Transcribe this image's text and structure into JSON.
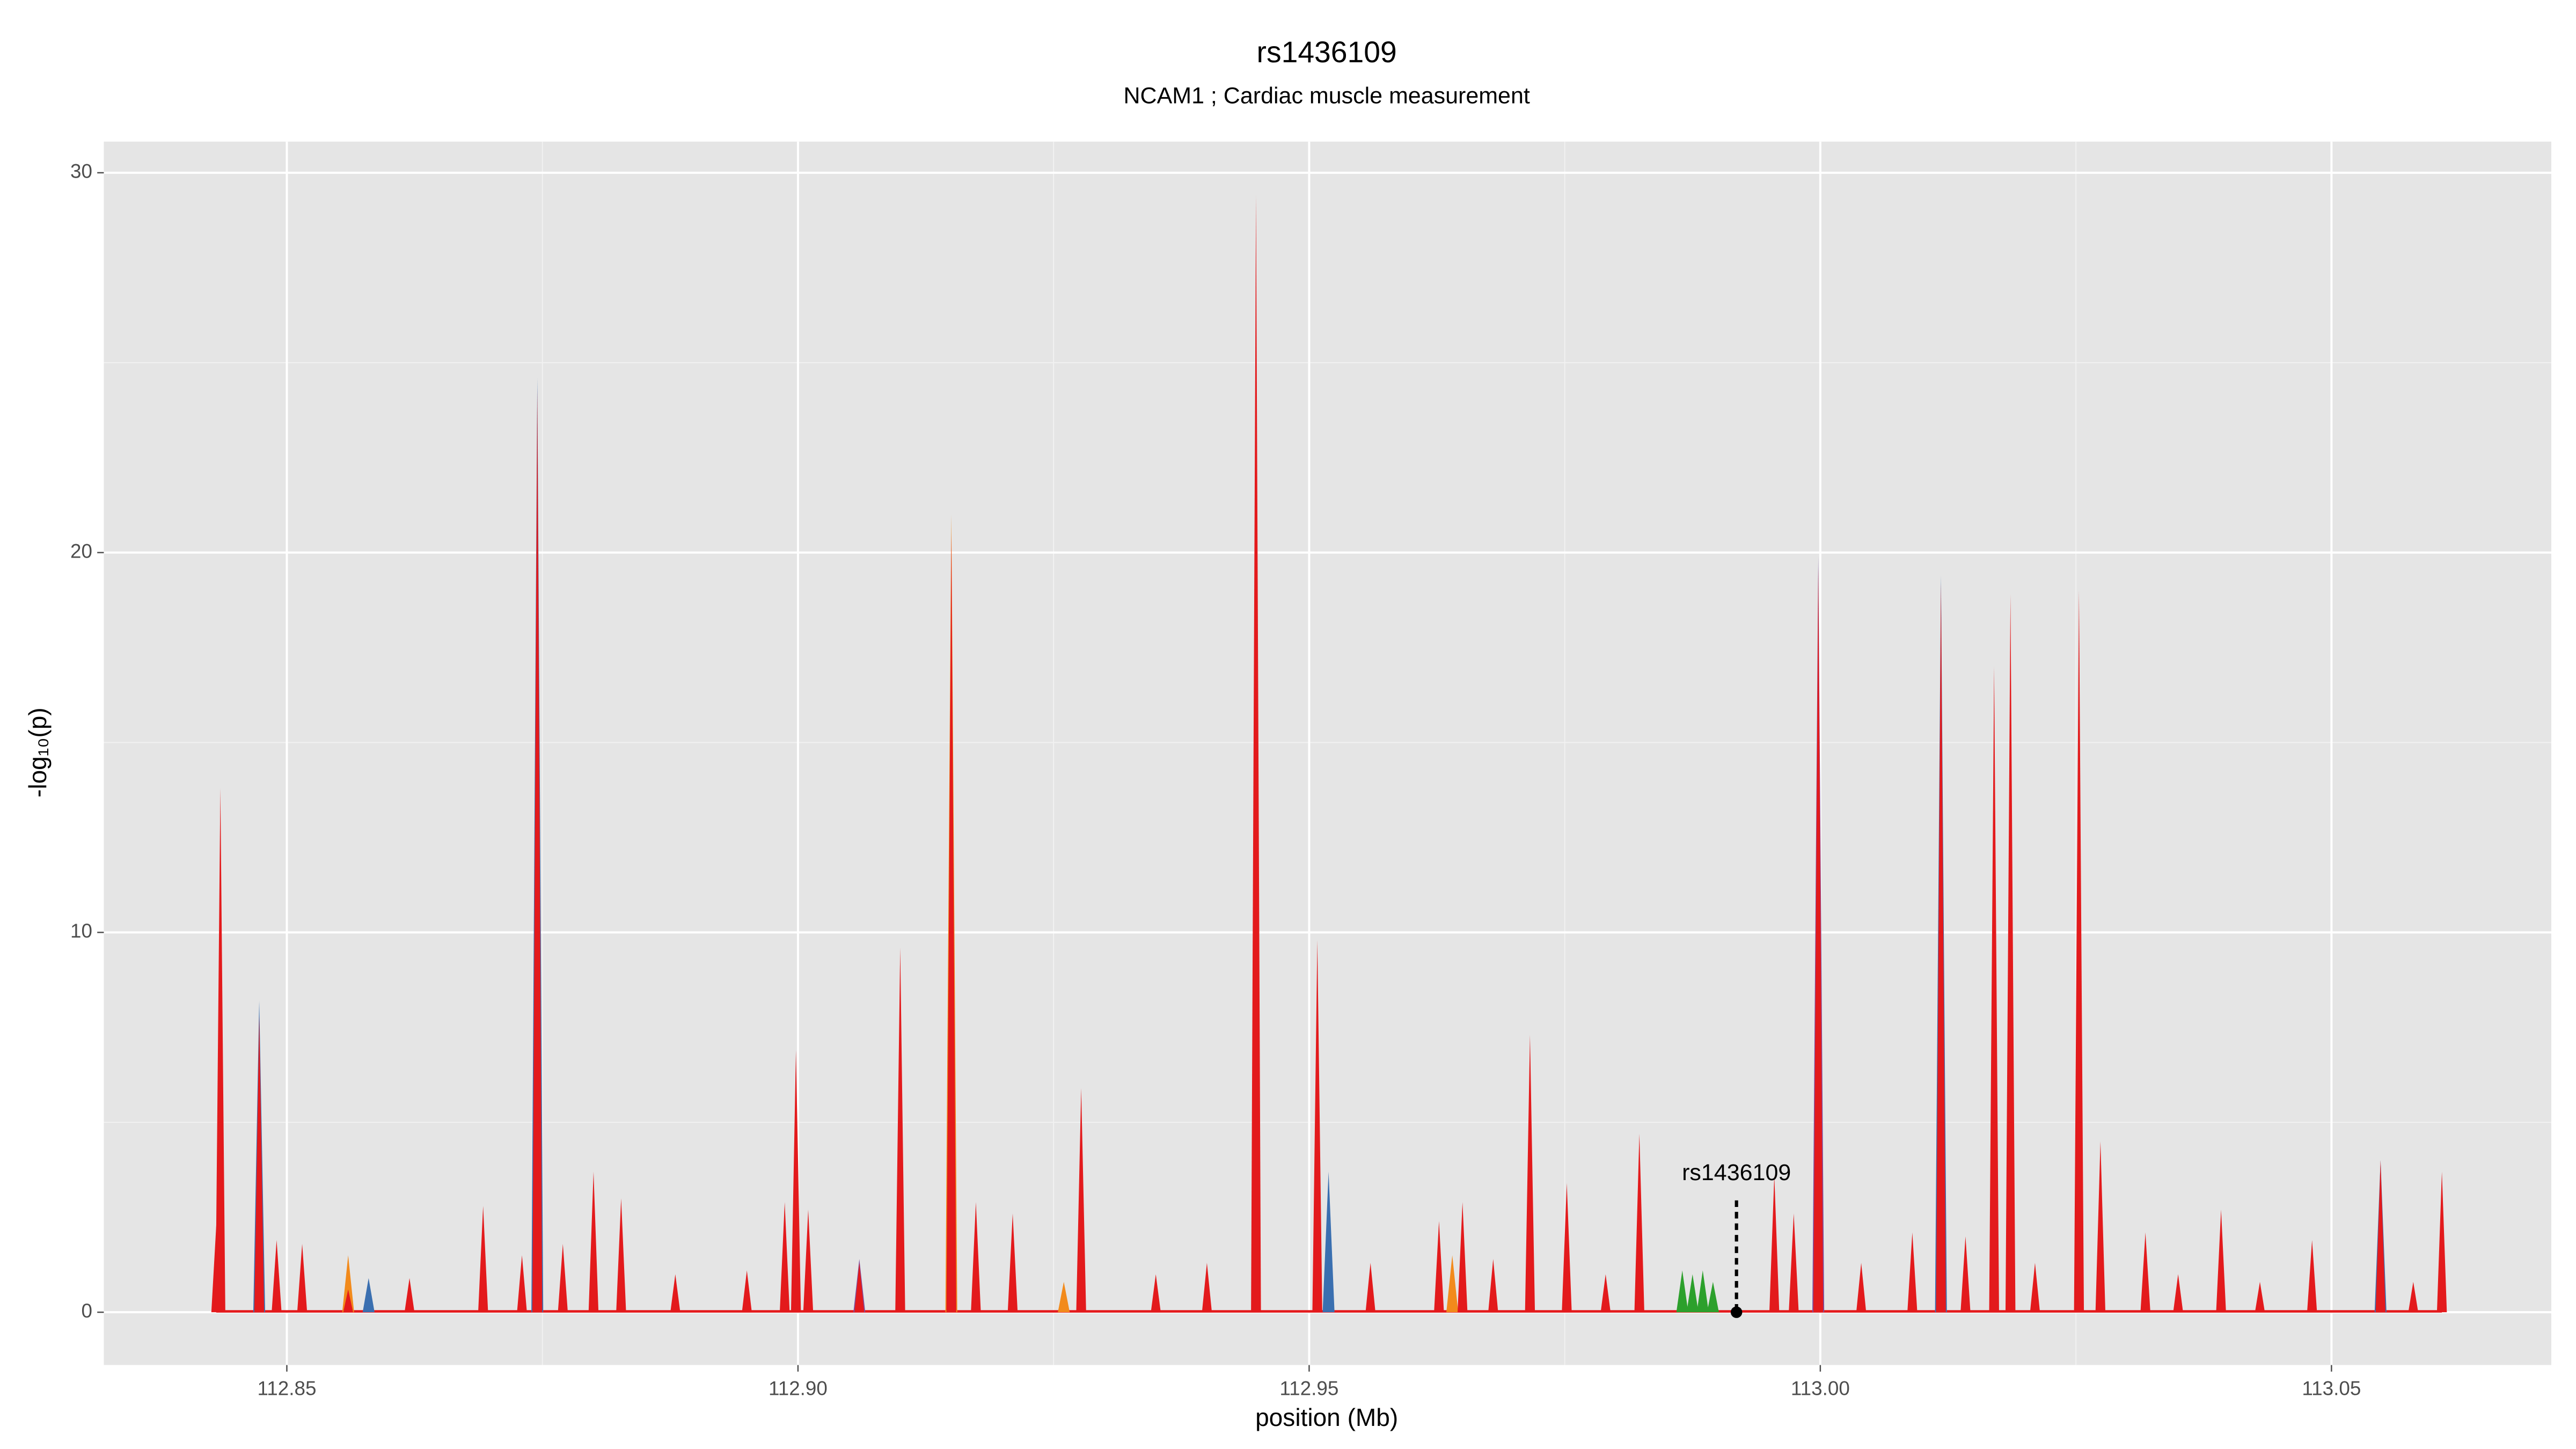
{
  "chart_data": {
    "type": "area",
    "title": "rs1436109",
    "subtitle": "NCAM1 ; Cardiac muscle measurement",
    "x_label": "position (Mb)",
    "y_label": "-log₁₀(p)",
    "xlim": [
      112.8321,
      113.0715
    ],
    "ylim": [
      -1.39,
      30.82
    ],
    "xticks": [
      112.85,
      {
        "value": 112.9,
        "label": "112.90"
      },
      112.95,
      {
        "value": 113,
        "label": "113.00"
      },
      113.05
    ],
    "yticks": [
      0,
      10,
      20,
      30
    ],
    "xminor": [
      112.875,
      112.925,
      112.975,
      113.025
    ],
    "yminor": [
      5,
      15,
      25
    ],
    "grid": true,
    "annotation": {
      "label": "rs1436109",
      "x": 112.9918
    },
    "series": [
      {
        "name": "blue",
        "color": "#3a6fb0",
        "x": [
          112.8473,
          112.8745,
          112.9519,
          113.0118,
          113.0548,
          112.858
        ],
        "values": [
          8.2,
          24.6,
          3.7,
          19.4,
          4.0,
          0.9
        ]
      },
      {
        "name": "orange",
        "color": "#f28a1b",
        "x": [
          112.915,
          112.856,
          112.964,
          112.926
        ],
        "values": [
          21.0,
          1.5,
          1.5,
          0.8
        ]
      },
      {
        "name": "purple",
        "color": "#7b4fa0",
        "x": [
          112.9998,
          112.906
        ],
        "values": [
          19.9,
          1.4
        ]
      },
      {
        "name": "green",
        "color": "#2ca02c",
        "x": [
          112.9865,
          112.9875,
          112.9885,
          112.9895
        ],
        "values": [
          1.1,
          1.0,
          1.1,
          0.8
        ]
      },
      {
        "name": "red",
        "color": "#e31a1c",
        "x": [
          112.8431,
          112.8435,
          112.8473,
          112.849,
          112.8515,
          112.856,
          112.862,
          112.8692,
          112.873,
          112.8745,
          112.877,
          112.88,
          112.8827,
          112.888,
          112.895,
          112.8987,
          112.8998,
          112.901,
          112.906,
          112.91,
          112.915,
          112.9174,
          112.921,
          112.9277,
          112.935,
          112.94,
          112.9448,
          112.9508,
          112.956,
          112.9627,
          112.965,
          112.968,
          112.9716,
          112.9752,
          112.979,
          112.9823,
          112.9955,
          112.9974,
          112.9998,
          113.004,
          113.009,
          113.0118,
          113.0142,
          113.017,
          113.0186,
          113.021,
          113.0253,
          113.0274,
          113.0318,
          113.035,
          113.0392,
          113.043,
          113.0481,
          113.0548,
          113.058,
          113.0608
        ],
        "values": [
          2.3,
          13.8,
          7.8,
          1.9,
          1.8,
          0.6,
          0.9,
          2.8,
          1.5,
          24.3,
          1.8,
          3.7,
          3.0,
          1.0,
          1.1,
          2.9,
          6.9,
          2.7,
          1.3,
          9.6,
          20.5,
          2.9,
          2.6,
          5.9,
          1.0,
          1.3,
          29.4,
          9.8,
          1.3,
          2.4,
          2.9,
          1.4,
          7.3,
          3.4,
          1.0,
          4.7,
          3.6,
          2.6,
          19.6,
          1.3,
          2.1,
          19.2,
          2.0,
          17.0,
          18.9,
          1.3,
          19.0,
          4.5,
          2.1,
          1.0,
          2.7,
          0.8,
          1.9,
          4.0,
          0.8,
          3.7
        ]
      }
    ]
  }
}
